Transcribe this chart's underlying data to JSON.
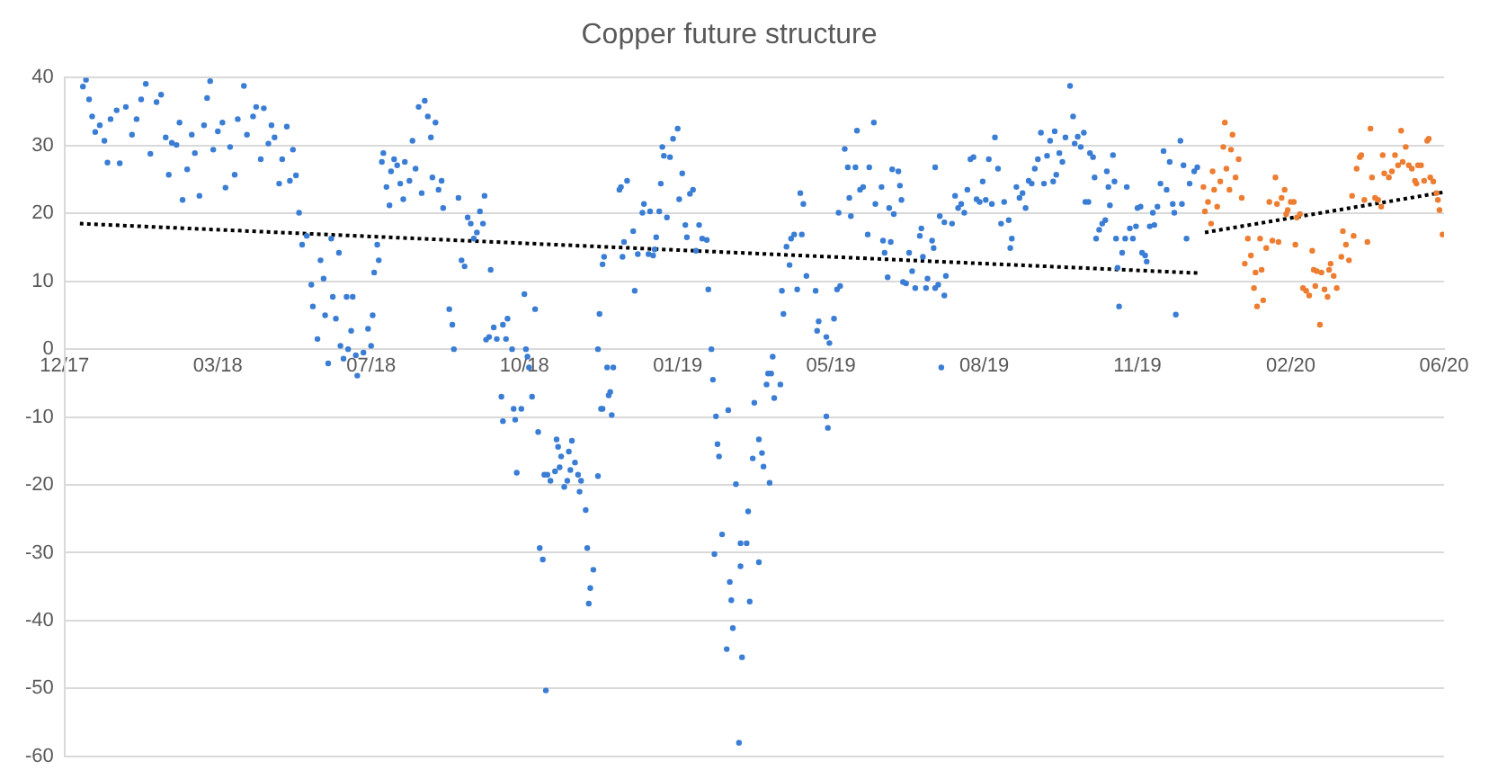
{
  "chart_data": {
    "type": "scatter",
    "title": "Copper future structure",
    "xlim": [
      "2017-12-20",
      "2020-06-07"
    ],
    "xticks": [
      {
        "value": "2017-12-20",
        "label": "12/17"
      },
      {
        "value": "2018-03-30",
        "label": "03/18"
      },
      {
        "value": "2018-07-08",
        "label": "07/18"
      },
      {
        "value": "2018-10-16",
        "label": "10/18"
      },
      {
        "value": "2019-01-24",
        "label": "01/19"
      },
      {
        "value": "2019-05-04",
        "label": "05/19"
      },
      {
        "value": "2019-08-12",
        "label": "08/19"
      },
      {
        "value": "2019-11-20",
        "label": "11/19"
      },
      {
        "value": "2020-02-28",
        "label": "02/20"
      },
      {
        "value": "2020-06-07",
        "label": "06/20"
      }
    ],
    "ylim": [
      -60,
      40
    ],
    "yticks": [
      -60,
      -50,
      -40,
      -30,
      -20,
      -10,
      0,
      10,
      20,
      30,
      40
    ],
    "grid": "y",
    "legend": false,
    "marker": "circle",
    "series": [
      {
        "type": "scatter",
        "color": "#3a7dd4",
        "x": [
          "2018-01-01",
          "2018-01-03",
          "2018-01-05",
          "2018-01-07",
          "2018-01-09",
          "2018-01-12",
          "2018-01-15",
          "2018-01-17",
          "2018-01-19",
          "2018-01-23",
          "2018-01-25",
          "2018-01-29",
          "2018-02-02",
          "2018-02-05",
          "2018-02-08",
          "2018-02-11",
          "2018-02-14",
          "2018-02-18",
          "2018-02-21",
          "2018-02-24",
          "2018-02-26",
          "2018-02-28",
          "2018-03-03",
          "2018-03-05",
          "2018-03-07",
          "2018-03-10",
          "2018-03-13",
          "2018-03-15",
          "2018-03-18",
          "2018-03-21",
          "2018-03-23",
          "2018-03-25",
          "2018-03-27",
          "2018-03-30",
          "2018-04-02",
          "2018-04-04",
          "2018-04-07",
          "2018-04-10",
          "2018-04-12",
          "2018-04-16",
          "2018-04-18",
          "2018-04-22",
          "2018-04-24",
          "2018-04-27",
          "2018-04-29",
          "2018-05-02",
          "2018-05-04",
          "2018-05-06",
          "2018-05-09",
          "2018-05-11",
          "2018-05-14",
          "2018-05-16",
          "2018-05-18",
          "2018-05-20",
          "2018-05-22",
          "2018-05-24",
          "2018-05-27",
          "2018-05-30",
          "2018-05-31",
          "2018-06-03",
          "2018-06-05",
          "2018-06-07",
          "2018-06-08",
          "2018-06-10",
          "2018-06-12",
          "2018-06-13",
          "2018-06-15",
          "2018-06-17",
          "2018-06-18",
          "2018-06-20",
          "2018-06-22",
          "2018-06-23",
          "2018-06-25",
          "2018-06-26",
          "2018-06-28",
          "2018-06-29",
          "2018-07-03",
          "2018-07-06",
          "2018-07-08",
          "2018-07-09",
          "2018-07-10",
          "2018-07-12",
          "2018-07-13",
          "2018-07-15",
          "2018-07-16",
          "2018-07-18",
          "2018-07-20",
          "2018-07-21",
          "2018-07-23",
          "2018-07-25",
          "2018-07-27",
          "2018-07-29",
          "2018-07-30",
          "2018-08-02",
          "2018-08-04",
          "2018-08-06",
          "2018-08-08",
          "2018-08-10",
          "2018-08-12",
          "2018-08-14",
          "2018-08-16",
          "2018-08-17",
          "2018-08-19",
          "2018-08-21",
          "2018-08-23",
          "2018-08-24",
          "2018-08-28",
          "2018-08-30",
          "2018-08-31",
          "2018-09-03",
          "2018-09-05",
          "2018-09-07",
          "2018-09-09",
          "2018-09-11",
          "2018-09-13",
          "2018-09-15",
          "2018-09-17",
          "2018-09-19",
          "2018-09-20",
          "2018-09-21",
          "2018-09-23",
          "2018-09-24",
          "2018-09-26",
          "2018-09-28",
          "2018-10-01",
          "2018-10-02",
          "2018-10-02",
          "2018-10-04",
          "2018-10-05",
          "2018-10-08",
          "2018-10-09",
          "2018-10-10",
          "2018-10-11",
          "2018-10-14",
          "2018-10-16",
          "2018-10-17",
          "2018-10-18",
          "2018-10-19",
          "2018-10-21",
          "2018-10-23",
          "2018-10-25",
          "2018-10-26",
          "2018-10-28",
          "2018-10-29",
          "2018-10-30",
          "2018-10-31",
          "2018-11-02",
          "2018-11-05",
          "2018-11-06",
          "2018-11-07",
          "2018-11-08",
          "2018-11-09",
          "2018-11-11",
          "2018-11-13",
          "2018-11-14",
          "2018-11-15",
          "2018-11-16",
          "2018-11-18",
          "2018-11-20",
          "2018-11-21",
          "2018-11-22",
          "2018-11-25",
          "2018-11-26",
          "2018-11-27",
          "2018-11-28",
          "2018-11-30",
          "2018-12-03",
          "2018-12-03",
          "2018-12-04",
          "2018-12-05",
          "2018-12-06",
          "2018-12-06",
          "2018-12-07",
          "2018-12-09",
          "2018-12-10",
          "2018-12-11",
          "2018-12-12",
          "2018-12-13",
          "2018-12-17",
          "2018-12-18",
          "2018-12-19",
          "2018-12-20",
          "2018-12-22",
          "2018-12-26",
          "2018-12-27",
          "2018-12-29",
          "2019-01-01",
          "2019-01-02",
          "2019-01-05",
          "2019-01-06",
          "2019-01-08",
          "2019-01-09",
          "2019-01-10",
          "2019-01-12",
          "2019-01-13",
          "2019-01-14",
          "2019-01-15",
          "2019-01-17",
          "2019-01-19",
          "2019-01-21",
          "2019-01-24",
          "2019-01-25",
          "2019-01-27",
          "2019-01-29",
          "2019-01-30",
          "2019-02-01",
          "2019-02-03",
          "2019-02-05",
          "2019-02-07",
          "2019-02-09",
          "2019-02-12",
          "2019-02-13",
          "2019-02-15",
          "2019-02-16",
          "2019-02-17",
          "2019-02-18",
          "2019-02-19",
          "2019-02-20",
          "2019-02-22",
          "2019-02-25",
          "2019-02-26",
          "2019-02-27",
          "2019-02-28",
          "2019-03-01",
          "2019-03-03",
          "2019-03-05",
          "2019-03-06",
          "2019-03-06",
          "2019-03-07",
          "2019-03-10",
          "2019-03-11",
          "2019-03-12",
          "2019-03-14",
          "2019-03-15",
          "2019-03-18",
          "2019-03-18",
          "2019-03-20",
          "2019-03-21",
          "2019-03-23",
          "2019-03-24",
          "2019-03-25",
          "2019-03-26",
          "2019-03-27",
          "2019-03-28",
          "2019-04-01",
          "2019-04-02",
          "2019-04-03",
          "2019-04-05",
          "2019-04-07",
          "2019-04-08",
          "2019-04-10",
          "2019-04-12",
          "2019-04-14",
          "2019-04-15",
          "2019-04-16",
          "2019-04-18",
          "2019-04-24",
          "2019-04-25",
          "2019-04-26",
          "2019-05-01",
          "2019-05-01",
          "2019-05-02",
          "2019-05-03",
          "2019-05-06",
          "2019-05-08",
          "2019-05-09",
          "2019-05-10",
          "2019-05-13",
          "2019-05-15",
          "2019-05-16",
          "2019-05-17",
          "2019-05-20",
          "2019-05-21",
          "2019-05-23",
          "2019-05-25",
          "2019-05-28",
          "2019-05-29",
          "2019-06-01",
          "2019-06-02",
          "2019-06-06",
          "2019-06-07",
          "2019-06-08",
          "2019-06-10",
          "2019-06-11",
          "2019-06-12",
          "2019-06-13",
          "2019-06-14",
          "2019-06-17",
          "2019-06-18",
          "2019-06-19",
          "2019-06-20",
          "2019-06-22",
          "2019-06-24",
          "2019-06-26",
          "2019-06-28",
          "2019-07-01",
          "2019-07-02",
          "2019-07-03",
          "2019-07-05",
          "2019-07-06",
          "2019-07-09",
          "2019-07-10",
          "2019-07-11",
          "2019-07-11",
          "2019-07-13",
          "2019-07-14",
          "2019-07-15",
          "2019-07-17",
          "2019-07-17",
          "2019-07-18",
          "2019-07-22",
          "2019-07-24",
          "2019-07-26",
          "2019-07-28",
          "2019-07-30",
          "2019-08-01",
          "2019-08-03",
          "2019-08-05",
          "2019-08-07",
          "2019-08-09",
          "2019-08-11",
          "2019-08-13",
          "2019-08-15",
          "2019-08-17",
          "2019-08-19",
          "2019-08-21",
          "2019-08-23",
          "2019-08-25",
          "2019-08-28",
          "2019-08-29",
          "2019-08-30",
          "2019-09-02",
          "2019-09-04",
          "2019-09-06",
          "2019-09-08",
          "2019-09-10",
          "2019-09-12",
          "2019-09-14",
          "2019-09-16",
          "2019-09-18",
          "2019-09-20",
          "2019-09-22",
          "2019-09-24",
          "2019-09-26",
          "2019-09-27",
          "2019-09-28",
          "2019-09-30",
          "2019-10-02",
          "2019-10-04",
          "2019-10-07",
          "2019-10-09",
          "2019-10-10",
          "2019-10-12",
          "2019-10-14",
          "2019-10-16",
          "2019-10-17",
          "2019-10-19",
          "2019-10-20",
          "2019-10-22",
          "2019-10-23",
          "2019-10-24",
          "2019-10-26",
          "2019-10-28",
          "2019-10-30",
          "2019-10-31",
          "2019-11-01",
          "2019-11-02",
          "2019-11-04",
          "2019-11-05",
          "2019-11-06",
          "2019-11-07",
          "2019-11-08",
          "2019-11-10",
          "2019-11-12",
          "2019-11-13",
          "2019-11-15",
          "2019-11-17",
          "2019-11-19",
          "2019-11-20",
          "2019-11-22",
          "2019-11-23",
          "2019-11-25",
          "2019-11-26",
          "2019-11-28",
          "2019-11-30",
          "2019-12-01",
          "2019-12-03",
          "2019-12-05",
          "2019-12-07",
          "2019-12-09",
          "2019-12-11",
          "2019-12-13",
          "2019-12-14",
          "2019-12-15",
          "2019-12-18",
          "2019-12-19",
          "2019-12-20",
          "2019-12-22",
          "2019-12-24",
          "2019-12-27",
          "2019-12-29"
        ],
        "values": [
          38.7,
          39.7,
          36.8,
          34.3,
          32,
          33,
          30.7,
          27.5,
          33.9,
          35.2,
          27.4,
          35.7,
          31.6,
          33.9,
          36.8,
          39.1,
          28.8,
          36.4,
          37.5,
          31.2,
          25.7,
          30.4,
          30.1,
          33.4,
          22,
          26.5,
          31.6,
          28.9,
          22.6,
          33,
          37,
          39.5,
          29.4,
          32.1,
          33.4,
          23.8,
          29.8,
          25.7,
          33.9,
          38.8,
          31.6,
          34.3,
          35.7,
          28,
          35.5,
          30.3,
          33,
          31.2,
          24.4,
          28,
          32.8,
          24.8,
          29.4,
          25.6,
          20.1,
          15.4,
          16.7,
          9.5,
          6.3,
          1.5,
          13.1,
          10.4,
          5,
          -2.1,
          16.3,
          7.7,
          4.5,
          14.2,
          0.5,
          -1.4,
          7.7,
          0,
          2.7,
          7.7,
          -0.9,
          -3.9,
          -0.5,
          3,
          0.5,
          5,
          11.3,
          15.4,
          13.1,
          27.6,
          28.9,
          23.9,
          21.2,
          26.2,
          28,
          27.1,
          24.4,
          22.1,
          27.6,
          24.8,
          30.7,
          26.6,
          35.7,
          23,
          36.6,
          34.3,
          31.2,
          25.3,
          33.4,
          23.5,
          24.8,
          20.8,
          5.9,
          3.6,
          0,
          22.3,
          13.1,
          12.2,
          19.4,
          18.5,
          16.3,
          17.2,
          20.3,
          18.5,
          22.6,
          1.4,
          1.8,
          11.7,
          3.2,
          1.5,
          -7,
          -10.6,
          3.6,
          1.5,
          4.5,
          0,
          -8.8,
          -10.4,
          -18.2,
          -8.8,
          8.1,
          0,
          -1.1,
          -2.7,
          -7,
          5.9,
          -12.2,
          -29.3,
          -31,
          -18.5,
          -50.3,
          -18.5,
          -19.4,
          -18,
          -13.3,
          -14.4,
          -17.4,
          -15.8,
          -20.3,
          -19.4,
          -15.1,
          -17.8,
          -13.5,
          -16.7,
          -18.5,
          -21,
          -19.4,
          -23.7,
          -29.3,
          -37.5,
          -35.2,
          -32.5,
          -18.7,
          0,
          5.2,
          -8.8,
          -8.8,
          12.5,
          13.6,
          -2.7,
          -6.8,
          -6.3,
          -9.7,
          -2.7,
          23.5,
          23.9,
          13.6,
          15.8,
          24.8,
          17.4,
          8.6,
          14,
          20.1,
          21.4,
          14,
          20.3,
          13.8,
          14.7,
          16.5,
          20.3,
          24.4,
          29.8,
          28.5,
          19.4,
          28.3,
          31,
          32.5,
          22.1,
          25.9,
          18.3,
          16.5,
          22.9,
          23.5,
          14.5,
          18.3,
          16.3,
          16.1,
          8.8,
          0,
          -4.5,
          -30.2,
          -9.9,
          -14,
          -15.8,
          -27.3,
          -44.2,
          -9,
          -34.3,
          -37,
          -41.1,
          -19.9,
          -58,
          -32,
          -28.6,
          -45.4,
          -28.6,
          -23.9,
          -37.2,
          -16.1,
          -7.9,
          -31.4,
          -13.3,
          -15.3,
          -17.3,
          -5.2,
          -3.6,
          -19.7,
          -3.6,
          -1.1,
          -7.2,
          -5.2,
          8.6,
          5.2,
          15.1,
          12.4,
          16.3,
          16.9,
          8.8,
          23,
          16.9,
          21.4,
          10.8,
          8.6,
          2.7,
          4.1,
          1.8,
          -9.9,
          -11.6,
          0.9,
          4.5,
          8.8,
          20.1,
          9.3,
          29.5,
          26.8,
          22.3,
          19.6,
          26.8,
          32.2,
          23.5,
          23.9,
          16.9,
          26.8,
          33.4,
          21.4,
          23.9,
          16,
          14.2,
          10.6,
          20.8,
          15.8,
          26.5,
          19.9,
          26.2,
          24.1,
          22,
          9.9,
          9.7,
          14.2,
          11.5,
          9,
          16.7,
          17.8,
          13.6,
          9,
          10.4,
          16,
          14.9,
          9,
          26.8,
          9.5,
          19.6,
          -2.7,
          7.9,
          18.7,
          10.8,
          18.5,
          22.6,
          20.8,
          21.4,
          20.1,
          23.5,
          28,
          28.3,
          22.1,
          21.7,
          24.7,
          22,
          28,
          21.4,
          31.2,
          26.6,
          18.5,
          21.7,
          19,
          14.9,
          16.3,
          23.9,
          22.3,
          23,
          20.8,
          24.8,
          24.4,
          26.6,
          28,
          31.9,
          24.4,
          28.5,
          30.7,
          24.7,
          32.1,
          25.7,
          28.9,
          27.6,
          31.2,
          38.8,
          34.3,
          30.3,
          31.3,
          29.8,
          31.9,
          21.7,
          21.7,
          28.9,
          28.3,
          25.3,
          16.3,
          17.6,
          18.5,
          19,
          26.2,
          23.9,
          21.2,
          28.6,
          24.7,
          16.3,
          12,
          6.3,
          14.2,
          16.3,
          23.9,
          17.8,
          16.3,
          18.1,
          20.8,
          21,
          14.2,
          13.8,
          12.9,
          18.1,
          20.1,
          18.3,
          21,
          24.4,
          29.2,
          23.5,
          27.6,
          21.4,
          20.1,
          5.1,
          30.7,
          21.4,
          27.1,
          16.3,
          24.4,
          26.2,
          26.8
        ]
      },
      {
        "type": "scatter",
        "color": "#ed7d31",
        "x": [
          "2020-01-02",
          "2020-01-03",
          "2020-01-05",
          "2020-01-07",
          "2020-01-08",
          "2020-01-09",
          "2020-01-11",
          "2020-01-13",
          "2020-01-15",
          "2020-01-16",
          "2020-01-17",
          "2020-01-19",
          "2020-01-20",
          "2020-01-21",
          "2020-01-23",
          "2020-01-25",
          "2020-01-27",
          "2020-01-29",
          "2020-01-31",
          "2020-02-02",
          "2020-02-04",
          "2020-02-05",
          "2020-02-06",
          "2020-02-08",
          "2020-02-09",
          "2020-02-10",
          "2020-02-12",
          "2020-02-14",
          "2020-02-16",
          "2020-02-18",
          "2020-02-19",
          "2020-02-20",
          "2020-02-22",
          "2020-02-24",
          "2020-02-25",
          "2020-02-26",
          "2020-02-28",
          "2020-03-01",
          "2020-03-02",
          "2020-03-03",
          "2020-03-05",
          "2020-03-07",
          "2020-03-09",
          "2020-03-11",
          "2020-03-13",
          "2020-03-14",
          "2020-03-15",
          "2020-03-16",
          "2020-03-18",
          "2020-03-19",
          "2020-03-21",
          "2020-03-23",
          "2020-03-24",
          "2020-03-25",
          "2020-03-27",
          "2020-03-29",
          "2020-04-01",
          "2020-04-02",
          "2020-04-04",
          "2020-04-06",
          "2020-04-08",
          "2020-04-09",
          "2020-04-11",
          "2020-04-13",
          "2020-04-14",
          "2020-04-16",
          "2020-04-18",
          "2020-04-20",
          "2020-04-21",
          "2020-04-23",
          "2020-04-25",
          "2020-04-27",
          "2020-04-28",
          "2020-04-29",
          "2020-05-02",
          "2020-05-04",
          "2020-05-06",
          "2020-05-08",
          "2020-05-10",
          "2020-05-11",
          "2020-05-13",
          "2020-05-15",
          "2020-05-17",
          "2020-05-19",
          "2020-05-20",
          "2020-05-21",
          "2020-05-23",
          "2020-05-25",
          "2020-05-27",
          "2020-05-28",
          "2020-05-29",
          "2020-05-31",
          "2020-06-02",
          "2020-06-03",
          "2020-06-04",
          "2020-06-06"
        ],
        "values": [
          23.9,
          20.3,
          21.7,
          18.5,
          26.2,
          23.5,
          21,
          24.7,
          29.8,
          33.4,
          26.6,
          23.5,
          29.4,
          31.6,
          25.3,
          28,
          22.3,
          12.6,
          16.3,
          13.8,
          9,
          11.3,
          6.3,
          16.3,
          11.7,
          7.2,
          14.9,
          21.7,
          16,
          25.3,
          21.4,
          15.8,
          22.3,
          23.5,
          19.9,
          20.5,
          21.7,
          21.7,
          15.4,
          19.4,
          19.9,
          9,
          8.6,
          7.9,
          14.5,
          11.7,
          9.3,
          11.5,
          3.6,
          11.3,
          8.8,
          7.7,
          11.7,
          12.6,
          10.8,
          9,
          13.6,
          17.4,
          15.4,
          13.1,
          22.6,
          16.7,
          26.6,
          28.3,
          28.6,
          22,
          15.8,
          32.5,
          25.3,
          22.3,
          22,
          21,
          28.6,
          25.9,
          25.3,
          26.2,
          28.6,
          27.1,
          32.2,
          27.6,
          29.8,
          27.1,
          26.6,
          24.8,
          24.4,
          27.1,
          27.1,
          24.8,
          30.7,
          31,
          25.3,
          24.7,
          23,
          22,
          20.5,
          16.9
        ]
      },
      {
        "type": "line",
        "color": "#000000",
        "line_style": "dotted",
        "marker": "none",
        "x": [
          "2017-12-30",
          "2019-12-31"
        ],
        "values": [
          18.5,
          11.2
        ]
      },
      {
        "type": "line",
        "color": "#000000",
        "line_style": "dotted",
        "marker": "none",
        "x": [
          "2020-01-03",
          "2020-06-06"
        ],
        "values": [
          17.2,
          23.1
        ]
      }
    ]
  }
}
